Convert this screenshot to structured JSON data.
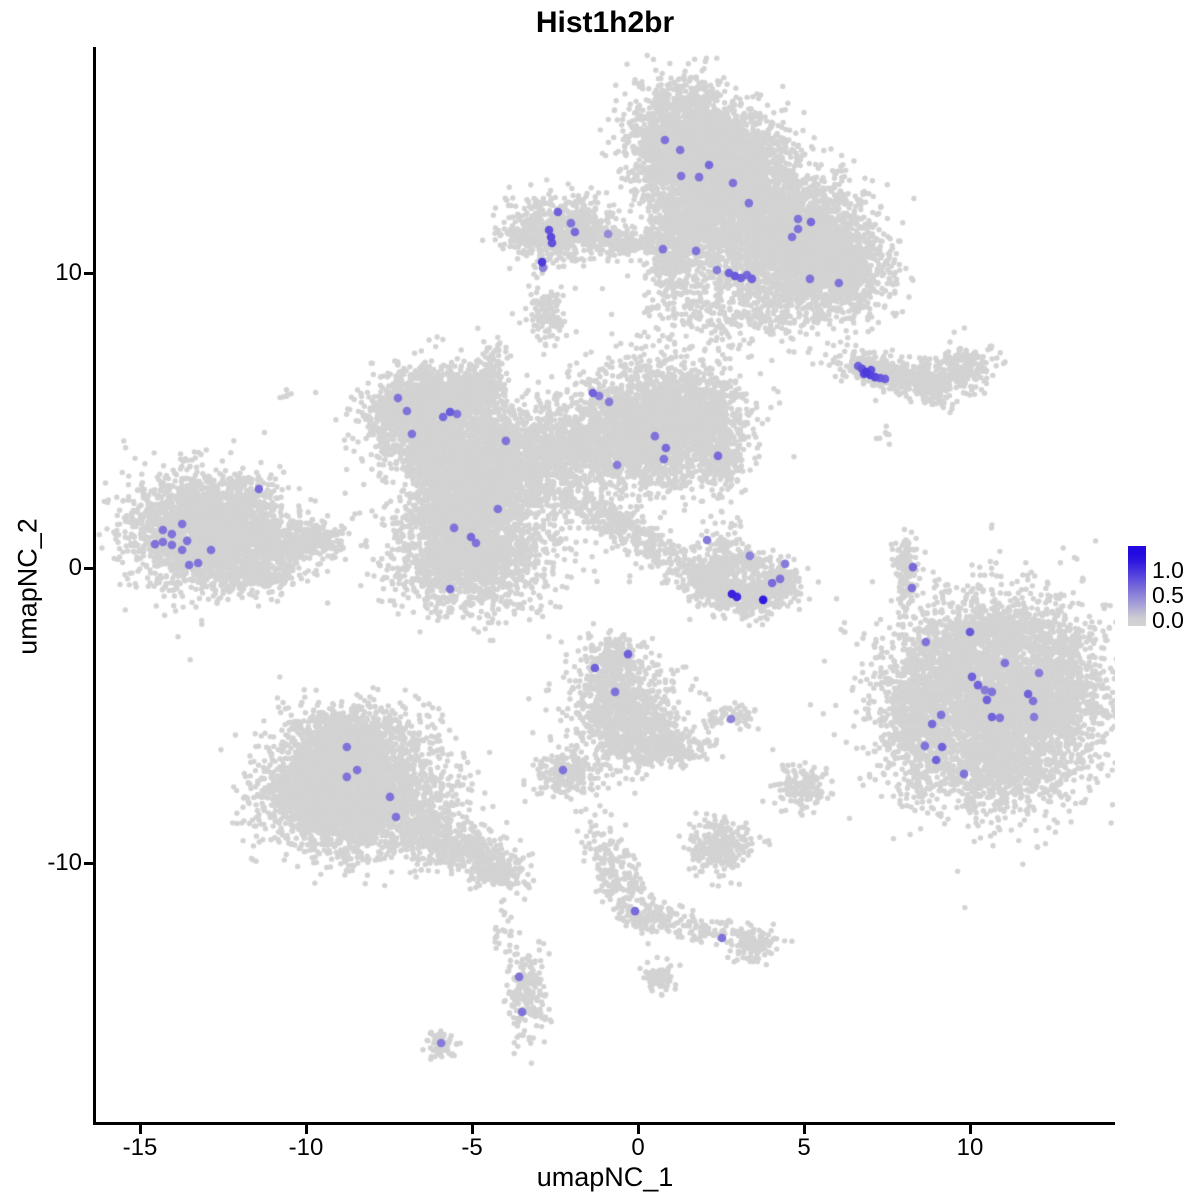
{
  "title": "Hist1h2br",
  "axes": {
    "x_label": "umapNC_1",
    "y_label": "umapNC_2",
    "x_ticks": [
      -15,
      -10,
      -5,
      0,
      5,
      10
    ],
    "y_ticks": [
      10,
      0,
      -10
    ]
  },
  "legend": {
    "tick_labels": [
      "1.0",
      "0.5",
      "0.0"
    ],
    "tick_values": [
      1.0,
      0.5,
      0.0
    ]
  },
  "colors": {
    "background_point": "#d3d3d3",
    "expression_low": "#d3d3d3",
    "expression_high": "#230ae0",
    "expression_max_value": 1.25
  },
  "chart_data": {
    "type": "scatter",
    "title": "Hist1h2br",
    "xlabel": "umapNC_1",
    "ylabel": "umapNC_2",
    "xlim": [
      -16.4,
      14.4
    ],
    "ylim": [
      -18.8,
      17.7
    ],
    "grid": false,
    "legend_position": "right",
    "background_clusters_note": "gaussian blobs: [cx, cy, sx, sy, rot_rad, n_points]",
    "background_blobs": [
      [
        1.42,
        14.34,
        0.84,
        1.02,
        0,
        2200
      ],
      [
        3.07,
        13.49,
        0.9,
        0.85,
        0,
        1500
      ],
      [
        2.02,
        11.97,
        0.75,
        0.95,
        0,
        900
      ],
      [
        4.88,
        11.12,
        1.14,
        1.02,
        -0.5,
        2400
      ],
      [
        6.23,
        10.1,
        0.6,
        0.75,
        0,
        550
      ],
      [
        3.67,
        9.36,
        1.36,
        0.85,
        0,
        600
      ],
      [
        1.02,
        10.71,
        0.36,
        0.88,
        0,
        350
      ],
      [
        1.87,
        8.58,
        1.2,
        0.68,
        0,
        120
      ],
      [
        -2.35,
        11.53,
        0.75,
        0.54,
        0,
        700
      ],
      [
        -0.45,
        11.05,
        0.84,
        0.24,
        -0.1,
        200
      ],
      [
        -3.46,
        11.22,
        0.27,
        0.24,
        0,
        60
      ],
      [
        -2.89,
        10.24,
        0.12,
        0.2,
        0,
        12
      ],
      [
        -2.77,
        8.58,
        0.27,
        0.51,
        0,
        130
      ],
      [
        -13.04,
        1.29,
        1.14,
        0.95,
        0,
        2400
      ],
      [
        -10.84,
        0.88,
        0.9,
        0.44,
        0,
        450
      ],
      [
        -9.58,
        0.95,
        0.39,
        0.24,
        0,
        100
      ],
      [
        -11.81,
        2.31,
        0.39,
        0.31,
        0.72,
        90
      ],
      [
        -11.69,
        -0.14,
        0.78,
        0.34,
        0,
        280
      ],
      [
        -6.57,
        5.42,
        0.9,
        0.68,
        0.45,
        1200
      ],
      [
        -5.12,
        6.0,
        0.6,
        0.34,
        0.5,
        250
      ],
      [
        -4.46,
        6.27,
        0.24,
        0.75,
        0,
        200
      ],
      [
        -4.76,
        3.32,
        1.05,
        1.02,
        0,
        1700
      ],
      [
        -5.96,
        4.17,
        0.75,
        0.61,
        0,
        500
      ],
      [
        0.51,
        4.85,
        1.2,
        1.02,
        0,
        2400
      ],
      [
        1.87,
        5.69,
        0.54,
        0.47,
        0.6,
        350
      ],
      [
        2.41,
        3.9,
        0.42,
        0.68,
        0,
        300
      ],
      [
        -2.05,
        4.0,
        1.36,
        0.75,
        0,
        1000
      ],
      [
        -5.06,
        0.61,
        1.14,
        1.02,
        0,
        2000
      ],
      [
        -0.24,
        1.19,
        1.45,
        0.34,
        -0.6,
        400
      ],
      [
        -5.36,
        1.97,
        0.6,
        0.54,
        0,
        450
      ],
      [
        -2.95,
        2.98,
        1.81,
        1.36,
        0,
        250
      ],
      [
        7.23,
        6.68,
        0.66,
        0.31,
        -0.3,
        300
      ],
      [
        8.43,
        6.41,
        0.48,
        0.27,
        0,
        150
      ],
      [
        9.79,
        6.78,
        0.48,
        0.44,
        0,
        220
      ],
      [
        8.86,
        5.86,
        0.36,
        0.2,
        -0.45,
        60
      ],
      [
        7.53,
        4.44,
        0.15,
        0.2,
        0,
        8
      ],
      [
        8.04,
        0.27,
        0.21,
        0.51,
        0,
        90
      ],
      [
        8.13,
        -0.68,
        0.15,
        0.34,
        0,
        50
      ],
      [
        8.34,
        -2.61,
        0.36,
        0.95,
        0,
        30
      ],
      [
        2.26,
        -0.54,
        0.45,
        0.41,
        0,
        280
      ],
      [
        3.31,
        -0.95,
        0.54,
        0.34,
        0,
        260
      ],
      [
        4.19,
        -0.54,
        0.36,
        0.37,
        0,
        160
      ],
      [
        3.01,
        0.17,
        0.42,
        0.27,
        0,
        120
      ],
      [
        2.53,
        0.78,
        0.36,
        0.47,
        0,
        70
      ],
      [
        1.87,
        -0.24,
        0.24,
        0.27,
        0,
        40
      ],
      [
        10.9,
        -4.47,
        1.66,
        1.63,
        0,
        4200
      ],
      [
        8.34,
        -5.22,
        0.54,
        1.12,
        0,
        450
      ],
      [
        9.25,
        -2.95,
        0.6,
        0.68,
        0,
        280
      ],
      [
        10.9,
        -2.17,
        0.9,
        0.34,
        0,
        350
      ],
      [
        12.65,
        -4.14,
        0.45,
        1.02,
        0,
        300
      ],
      [
        10.45,
        -7.02,
        1.05,
        0.41,
        0,
        350
      ],
      [
        4.91,
        -7.39,
        0.39,
        0.37,
        0,
        150
      ],
      [
        -8.67,
        -5.83,
        0.96,
        0.61,
        0,
        1100
      ],
      [
        -8.37,
        -7.86,
        1.36,
        0.95,
        0,
        2600
      ],
      [
        -9.94,
        -7.46,
        0.66,
        0.75,
        0,
        600
      ],
      [
        -5.42,
        -9.49,
        0.9,
        0.44,
        -0.45,
        450
      ],
      [
        -4.25,
        -10.31,
        0.39,
        0.31,
        0,
        140
      ],
      [
        -2.2,
        -7.02,
        0.48,
        0.37,
        0,
        220
      ],
      [
        -0.78,
        -3.12,
        0.48,
        0.41,
        0,
        250
      ],
      [
        -0.39,
        -4.81,
        0.84,
        0.75,
        0,
        850
      ],
      [
        0.12,
        -6.1,
        0.66,
        0.37,
        0,
        300
      ],
      [
        1.33,
        -6.1,
        0.42,
        0.27,
        0,
        100
      ],
      [
        2.47,
        -9.39,
        0.48,
        0.44,
        0,
        280
      ],
      [
        -0.66,
        -10.44,
        0.33,
        0.95,
        0.35,
        220
      ],
      [
        0.51,
        -11.86,
        0.54,
        0.24,
        0,
        120
      ],
      [
        1.93,
        -12.24,
        0.42,
        0.2,
        -0.2,
        60
      ],
      [
        3.43,
        -12.71,
        0.39,
        0.31,
        0,
        130
      ],
      [
        -4.01,
        -12.1,
        0.18,
        0.61,
        0,
        25
      ],
      [
        -3.34,
        -14.41,
        0.3,
        0.78,
        0,
        200
      ],
      [
        -5.93,
        -16.1,
        0.27,
        0.24,
        0,
        60
      ],
      [
        0.63,
        -13.9,
        0.3,
        0.27,
        0,
        70
      ],
      [
        2.77,
        -5.08,
        0.42,
        0.2,
        0,
        60
      ],
      [
        -10.6,
        6.0,
        0.12,
        0.14,
        0,
        6
      ]
    ],
    "expressed_cells_note": "[umapNC_1, umapNC_2, expression]",
    "expressed_cells": [
      [
        0.81,
        14.51,
        0.6
      ],
      [
        1.27,
        14.17,
        0.6
      ],
      [
        2.14,
        13.66,
        0.65
      ],
      [
        1.3,
        13.29,
        0.6
      ],
      [
        1.84,
        13.25,
        0.6
      ],
      [
        2.86,
        13.05,
        0.6
      ],
      [
        3.34,
        12.37,
        0.6
      ],
      [
        4.82,
        11.83,
        0.6
      ],
      [
        5.21,
        11.73,
        0.65
      ],
      [
        4.82,
        11.49,
        0.6
      ],
      [
        4.64,
        11.22,
        0.6
      ],
      [
        0.75,
        10.81,
        0.6
      ],
      [
        1.75,
        10.75,
        0.6
      ],
      [
        2.38,
        10.1,
        0.55
      ],
      [
        2.74,
        10.0,
        0.7
      ],
      [
        2.92,
        9.9,
        0.75
      ],
      [
        3.1,
        9.83,
        0.7
      ],
      [
        3.28,
        9.93,
        0.65
      ],
      [
        3.43,
        9.8,
        0.7
      ],
      [
        5.18,
        9.8,
        0.6
      ],
      [
        6.05,
        9.66,
        0.6
      ],
      [
        -2.41,
        12.07,
        0.7
      ],
      [
        -2.02,
        11.69,
        0.6
      ],
      [
        -1.9,
        11.39,
        0.65
      ],
      [
        -2.68,
        11.46,
        0.8
      ],
      [
        -2.62,
        11.22,
        0.85
      ],
      [
        -2.59,
        11.02,
        0.8
      ],
      [
        -0.9,
        11.32,
        0.45
      ],
      [
        -2.89,
        10.37,
        0.95
      ],
      [
        -2.86,
        10.17,
        0.5
      ],
      [
        -11.42,
        2.68,
        0.65
      ],
      [
        -13.73,
        1.49,
        0.6
      ],
      [
        -14.31,
        1.29,
        0.6
      ],
      [
        -14.04,
        1.15,
        0.6
      ],
      [
        -14.31,
        0.88,
        0.6
      ],
      [
        -14.55,
        0.81,
        0.6
      ],
      [
        -14.04,
        0.78,
        0.6
      ],
      [
        -13.58,
        0.92,
        0.6
      ],
      [
        -13.73,
        0.61,
        0.6
      ],
      [
        -12.86,
        0.61,
        0.6
      ],
      [
        -13.52,
        0.1,
        0.6
      ],
      [
        -13.25,
        0.17,
        0.6
      ],
      [
        -7.23,
        5.76,
        0.6
      ],
      [
        -6.96,
        5.32,
        0.6
      ],
      [
        -5.87,
        5.12,
        0.65
      ],
      [
        -5.66,
        5.29,
        0.75
      ],
      [
        -5.45,
        5.22,
        0.6
      ],
      [
        -6.81,
        4.54,
        0.6
      ],
      [
        -3.98,
        4.31,
        0.6
      ],
      [
        -1.36,
        5.93,
        0.7
      ],
      [
        -1.17,
        5.83,
        0.55
      ],
      [
        -0.87,
        5.63,
        0.55
      ],
      [
        0.51,
        4.47,
        0.6
      ],
      [
        0.84,
        4.07,
        0.65
      ],
      [
        0.78,
        3.69,
        0.6
      ],
      [
        -0.63,
        3.49,
        0.55
      ],
      [
        2.41,
        3.8,
        0.65
      ],
      [
        -5.54,
        1.36,
        0.6
      ],
      [
        -5.03,
        1.05,
        0.65
      ],
      [
        -4.88,
        0.85,
        0.6
      ],
      [
        -4.22,
        2.0,
        0.6
      ],
      [
        -5.66,
        -0.71,
        0.6
      ],
      [
        6.63,
        6.85,
        0.7
      ],
      [
        6.75,
        6.75,
        0.8
      ],
      [
        6.87,
        6.64,
        0.95
      ],
      [
        6.99,
        6.54,
        0.9
      ],
      [
        7.14,
        6.47,
        0.85
      ],
      [
        7.29,
        6.44,
        0.75
      ],
      [
        7.44,
        6.41,
        0.7
      ],
      [
        6.81,
        6.58,
        0.85
      ],
      [
        7.02,
        6.71,
        0.8
      ],
      [
        8.28,
        0.03,
        0.65
      ],
      [
        8.25,
        -0.68,
        0.6
      ],
      [
        2.08,
        0.95,
        0.55
      ],
      [
        3.37,
        0.41,
        0.5
      ],
      [
        4.43,
        0.14,
        0.55
      ],
      [
        4.28,
        -0.37,
        0.6
      ],
      [
        4.04,
        -0.51,
        0.65
      ],
      [
        2.83,
        -0.88,
        1.1
      ],
      [
        2.98,
        -0.98,
        1.05
      ],
      [
        3.77,
        -1.08,
        1.15
      ],
      [
        10.0,
        -2.17,
        0.75
      ],
      [
        8.67,
        -2.51,
        0.6
      ],
      [
        11.05,
        -3.22,
        0.6
      ],
      [
        12.08,
        -3.56,
        0.55
      ],
      [
        10.06,
        -3.69,
        0.7
      ],
      [
        10.24,
        -3.97,
        0.7
      ],
      [
        10.45,
        -4.14,
        0.55
      ],
      [
        10.66,
        -4.2,
        0.6
      ],
      [
        11.75,
        -4.27,
        0.7
      ],
      [
        11.9,
        -4.51,
        0.6
      ],
      [
        10.51,
        -4.47,
        0.7
      ],
      [
        10.66,
        -5.05,
        0.7
      ],
      [
        10.9,
        -5.08,
        0.6
      ],
      [
        11.93,
        -5.05,
        0.55
      ],
      [
        9.13,
        -4.98,
        0.6
      ],
      [
        8.86,
        -5.29,
        0.65
      ],
      [
        9.16,
        -6.07,
        0.7
      ],
      [
        8.64,
        -6.03,
        0.6
      ],
      [
        8.98,
        -6.51,
        0.7
      ],
      [
        9.82,
        -6.98,
        0.6
      ],
      [
        -8.77,
        -6.07,
        0.6
      ],
      [
        -8.46,
        -6.85,
        0.6
      ],
      [
        -8.77,
        -7.08,
        0.6
      ],
      [
        -7.47,
        -7.76,
        0.6
      ],
      [
        -7.29,
        -8.44,
        0.6
      ],
      [
        -2.26,
        -6.85,
        0.6
      ],
      [
        -0.3,
        -2.92,
        0.7
      ],
      [
        -1.3,
        -3.39,
        0.7
      ],
      [
        -0.69,
        -4.2,
        0.6
      ],
      [
        2.8,
        -5.12,
        0.5
      ],
      [
        -0.09,
        -11.63,
        0.65
      ],
      [
        2.53,
        -12.54,
        0.6
      ],
      [
        -3.58,
        -13.86,
        0.6
      ],
      [
        -3.49,
        -15.05,
        0.6
      ],
      [
        -5.93,
        -16.1,
        0.55
      ]
    ]
  }
}
